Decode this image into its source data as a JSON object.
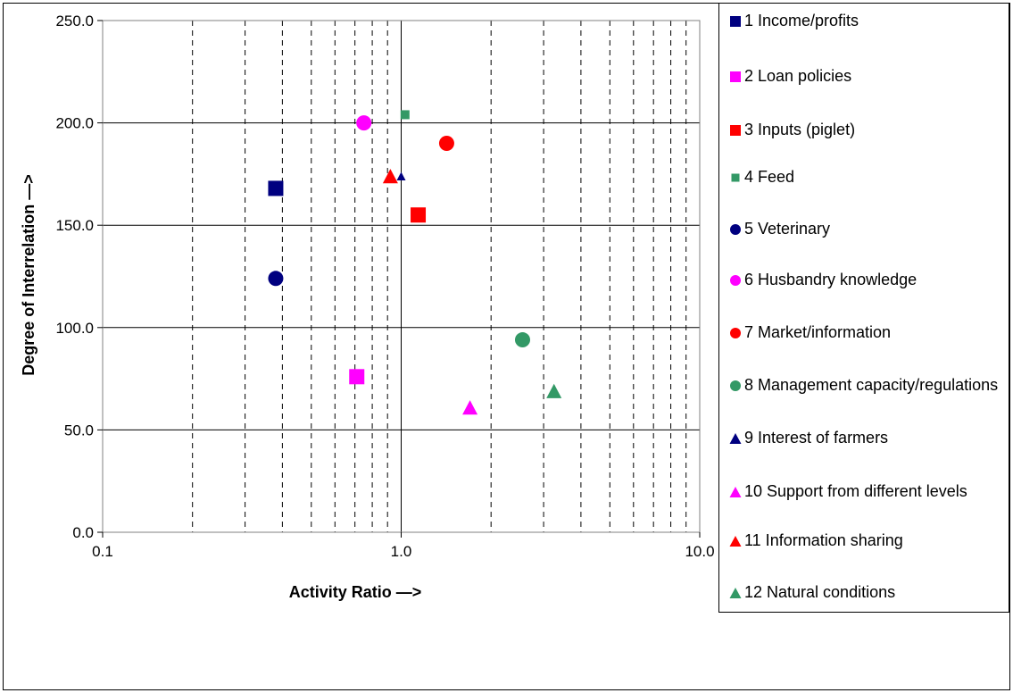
{
  "chart_data": {
    "type": "scatter",
    "title": "",
    "xlabel": "Activity Ratio  —>",
    "ylabel": "Degree of Interrelation  —>",
    "x_scale": "log",
    "xlim": [
      0.1,
      10.0
    ],
    "ylim": [
      0.0,
      250.0
    ],
    "x_ticks": [
      "0.1",
      "1.0",
      "10.0"
    ],
    "y_ticks": [
      "0.0",
      "50.0",
      "100.0",
      "150.0",
      "200.0",
      "250.0"
    ],
    "grid": {
      "y_major": true,
      "x_major": true,
      "x_minor": "dashed"
    },
    "legend_position": "right",
    "series": [
      {
        "name": "1 Income/profits",
        "marker": "square",
        "color": "#000080",
        "size": "large",
        "x": [
          0.38
        ],
        "y": [
          168
        ]
      },
      {
        "name": "2 Loan policies",
        "marker": "square",
        "color": "#FF00FF",
        "size": "large",
        "x": [
          0.71
        ],
        "y": [
          76
        ]
      },
      {
        "name": "3 Inputs (piglet)",
        "marker": "square",
        "color": "#FF0000",
        "size": "large",
        "x": [
          1.14
        ],
        "y": [
          155
        ]
      },
      {
        "name": "4 Feed",
        "marker": "square",
        "color": "#339966",
        "size": "small",
        "x": [
          1.03
        ],
        "y": [
          204
        ]
      },
      {
        "name": "5 Veterinary",
        "marker": "circle",
        "color": "#000080",
        "size": "large",
        "x": [
          0.38
        ],
        "y": [
          124
        ]
      },
      {
        "name": "6 Husbandry knowledge",
        "marker": "circle",
        "color": "#FF00FF",
        "size": "large",
        "x": [
          0.75
        ],
        "y": [
          200
        ]
      },
      {
        "name": "7 Market/information",
        "marker": "circle",
        "color": "#FF0000",
        "size": "large",
        "x": [
          1.42
        ],
        "y": [
          190
        ]
      },
      {
        "name": "8 Management capacity/regulations",
        "marker": "circle",
        "color": "#339966",
        "size": "large",
        "x": [
          2.55
        ],
        "y": [
          94
        ]
      },
      {
        "name": "9 Interest of farmers",
        "marker": "triangle",
        "color": "#000080",
        "size": "small",
        "x": [
          1.0
        ],
        "y": [
          174
        ]
      },
      {
        "name": "10 Support from different levels",
        "marker": "triangle",
        "color": "#FF00FF",
        "size": "large",
        "x": [
          1.7
        ],
        "y": [
          61
        ]
      },
      {
        "name": "11 Information sharing",
        "marker": "triangle",
        "color": "#FF0000",
        "size": "large",
        "x": [
          0.92
        ],
        "y": [
          174
        ]
      },
      {
        "name": "12 Natural conditions",
        "marker": "triangle",
        "color": "#339966",
        "size": "large",
        "x": [
          3.25
        ],
        "y": [
          69
        ]
      }
    ]
  }
}
